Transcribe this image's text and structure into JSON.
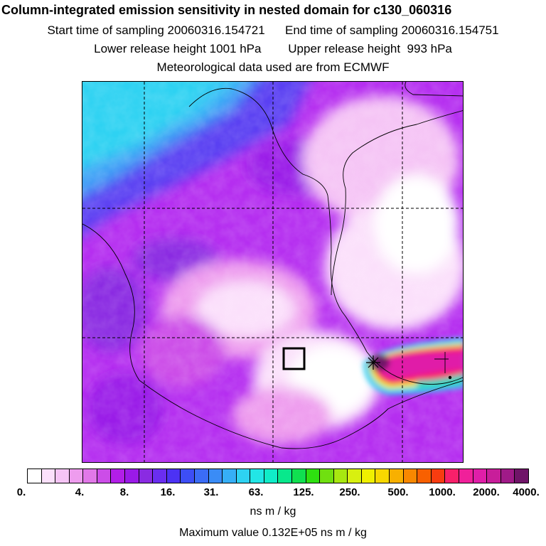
{
  "header": {
    "title": "Column-integrated emission sensitivity in nested domain for c130_060316",
    "start_time": "Start time of sampling 20060316.154721",
    "end_time": "End time of sampling 20060316.154751",
    "lower_height": "Lower release height 1001 hPa",
    "upper_height": "Upper release height  993 hPa",
    "met_data": "Meteorological data used are from ECMWF"
  },
  "map": {
    "source_marker": "release-location-box",
    "receptor_marker": "star"
  },
  "colorbar": {
    "ticks": [
      "0.",
      "4.",
      "8.",
      "16.",
      "31.",
      "63.",
      "125.",
      "250.",
      "500.",
      "1000.",
      "2000.",
      "4000."
    ],
    "colors": [
      "#ffffff",
      "#fbe0fb",
      "#f5c4f5",
      "#ee9cee",
      "#e178e8",
      "#cc4de8",
      "#b21ee8",
      "#9a1ae8",
      "#8a2be2",
      "#6a2ef0",
      "#4c32f4",
      "#3d4ef5",
      "#3b6cf5",
      "#3a8cf6",
      "#36aff6",
      "#2ed2f2",
      "#22e6e6",
      "#10ecc8",
      "#08e88c",
      "#10e050",
      "#2ee010",
      "#70e010",
      "#a8e810",
      "#d8f010",
      "#f0f000",
      "#f8d800",
      "#f8b000",
      "#f88800",
      "#f86000",
      "#f83c10",
      "#f8206a",
      "#f0209a",
      "#e01ea8",
      "#c81e9a",
      "#a01a88",
      "#701468"
    ],
    "units": "ns m / kg"
  },
  "footer": {
    "max_value": "Maximum value  0.132E+05 ns m / kg"
  }
}
